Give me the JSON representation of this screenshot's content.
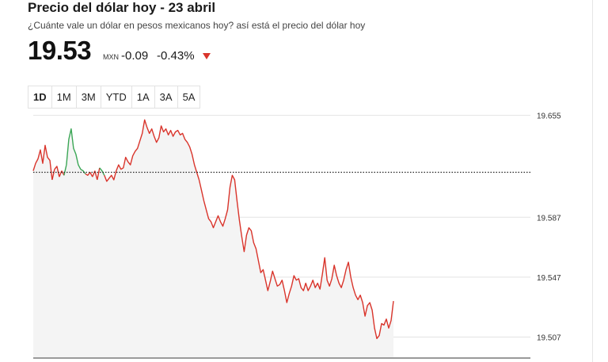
{
  "header": {
    "title": "Precio del dólar hoy - 23 abril",
    "subtitle": "¿Cuánte vale un dólar en pesos mexicanos hoy? así está el precio del dólar hoy"
  },
  "quote": {
    "price": "19.53",
    "currency": "MXN",
    "change": "-0.09",
    "change_pct": "-0.43%",
    "direction": "down",
    "down_color": "#d9342b"
  },
  "tabs": [
    {
      "label": "1D",
      "active": true
    },
    {
      "label": "1M",
      "active": false
    },
    {
      "label": "3M",
      "active": false
    },
    {
      "label": "YTD",
      "active": false
    },
    {
      "label": "1A",
      "active": false
    },
    {
      "label": "3A",
      "active": false
    },
    {
      "label": "5A",
      "active": false
    }
  ],
  "chart_data": {
    "type": "line",
    "title": "",
    "xlabel": "",
    "ylabel": "",
    "ylim": [
      19.493,
      19.658
    ],
    "yticks": [
      19.655,
      19.587,
      19.547,
      19.507
    ],
    "ytick_labels": [
      "19.655",
      "19.587",
      "19.547",
      "19.507"
    ],
    "reference_line": {
      "value": 19.617,
      "style": "dotted",
      "meaning": "previous close"
    },
    "grid": true,
    "area_fill": true,
    "colors": {
      "above": "#3aa655",
      "below": "#d9342b",
      "fill": "#f4f4f4",
      "grid": "#e3e3e3"
    },
    "series": [
      {
        "values": [
          19.618,
          19.623,
          19.626,
          19.632,
          19.623,
          19.635,
          19.627,
          19.625,
          19.612,
          19.619,
          19.621,
          19.614,
          19.618,
          19.615,
          19.622,
          19.639,
          19.646,
          19.633,
          19.629,
          19.622,
          19.619,
          19.618,
          19.616,
          19.615,
          19.617,
          19.614,
          19.618,
          19.612,
          19.62,
          19.618,
          19.615,
          19.611,
          19.613,
          19.615,
          19.612,
          19.618,
          19.622,
          19.619,
          19.62,
          19.627,
          19.624,
          19.622,
          19.628,
          19.631,
          19.633,
          19.638,
          19.643,
          19.652,
          19.647,
          19.643,
          19.646,
          19.641,
          19.637,
          19.64,
          19.648,
          19.644,
          19.646,
          19.642,
          19.645,
          19.641,
          19.644,
          19.645,
          19.642,
          19.643,
          19.639,
          19.637,
          19.634,
          19.629,
          19.622,
          19.617,
          19.612,
          19.605,
          19.598,
          19.592,
          19.586,
          19.584,
          19.58,
          19.584,
          19.588,
          19.584,
          19.581,
          19.586,
          19.592,
          19.607,
          19.615,
          19.612,
          19.598,
          19.585,
          19.574,
          19.564,
          19.575,
          19.58,
          19.578,
          19.57,
          19.566,
          19.558,
          19.55,
          19.552,
          19.545,
          19.538,
          19.544,
          19.551,
          19.546,
          19.541,
          19.542,
          19.545,
          19.538,
          19.53,
          19.536,
          19.541,
          19.548,
          19.545,
          19.546,
          19.54,
          19.538,
          19.543,
          19.538,
          19.541,
          19.545,
          19.54,
          19.543,
          19.539,
          19.549,
          19.56,
          19.545,
          19.541,
          19.546,
          19.555,
          19.548,
          19.543,
          19.54,
          19.545,
          19.552,
          19.557,
          19.547,
          19.54,
          19.535,
          19.532,
          19.535,
          19.53,
          19.521,
          19.528,
          19.53,
          19.525,
          19.513,
          19.506,
          19.508,
          19.516,
          19.515,
          19.519,
          19.513,
          19.518,
          19.531
        ]
      }
    ]
  }
}
